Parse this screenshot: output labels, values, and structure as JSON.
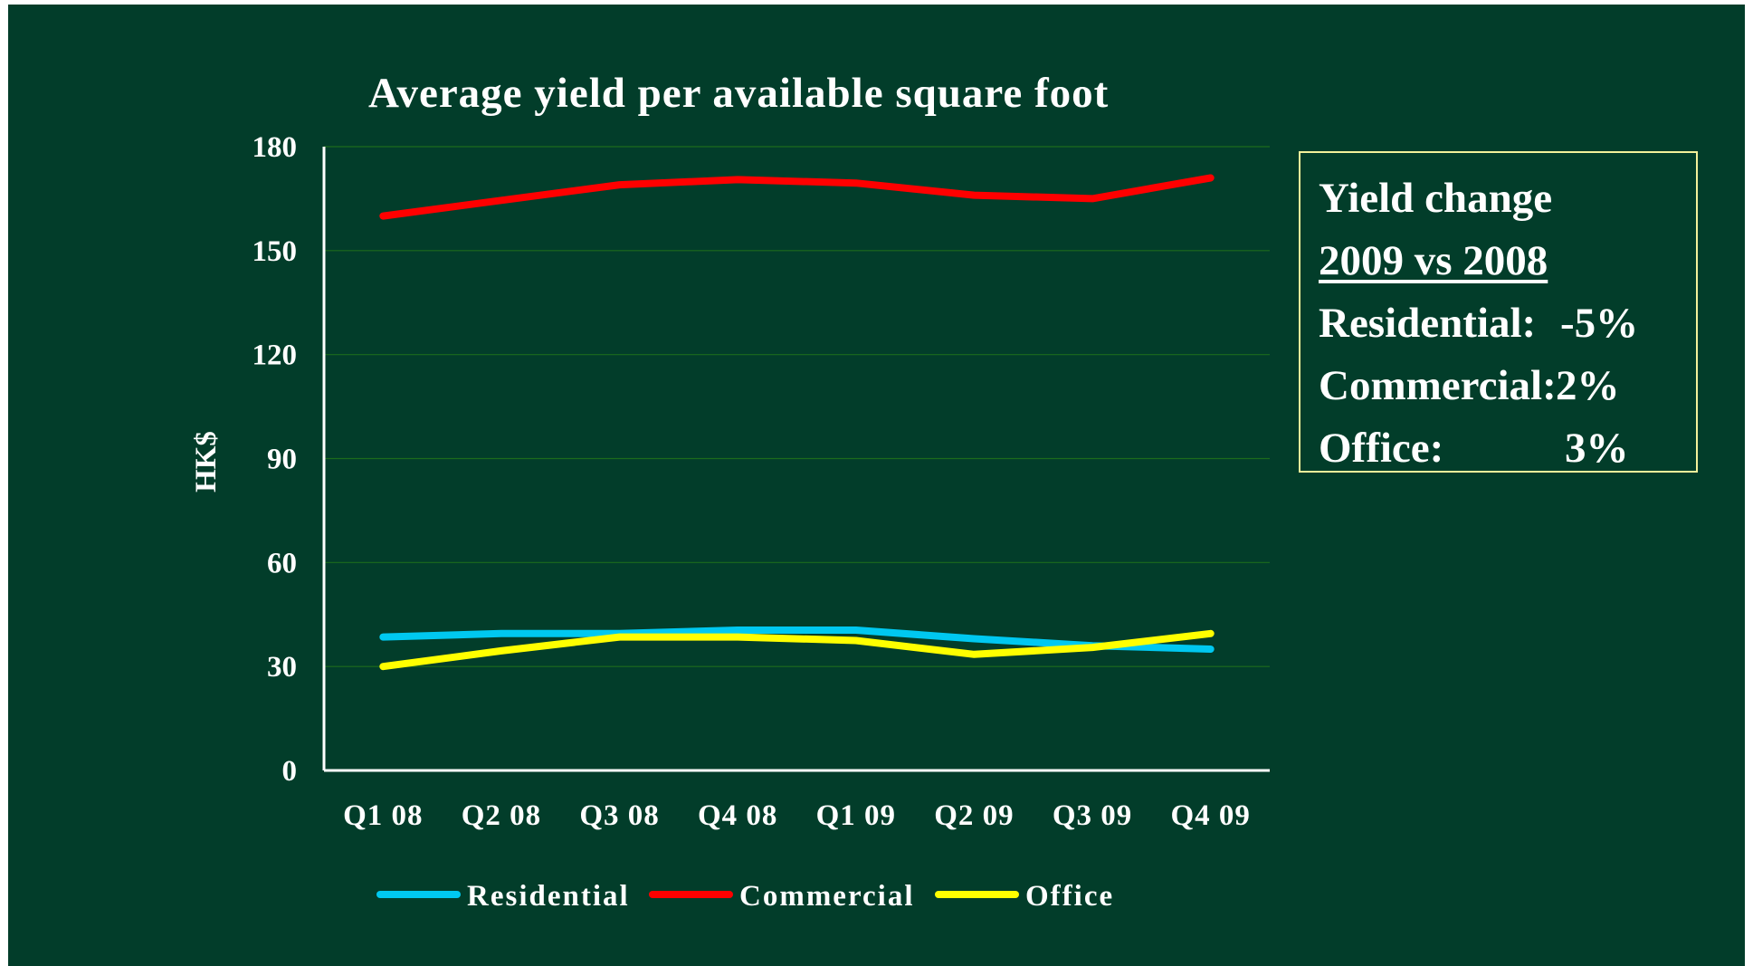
{
  "chart_data": {
    "type": "line",
    "title": "Average yield per available square foot",
    "ylabel": "HK$",
    "xlabel": "",
    "categories": [
      "Q1 08",
      "Q2 08",
      "Q3 08",
      "Q4 08",
      "Q1 09",
      "Q2 09",
      "Q3 09",
      "Q4 09"
    ],
    "ylim": [
      0,
      180
    ],
    "yticks": [
      "0",
      "30",
      "60",
      "90",
      "120",
      "150",
      "180"
    ],
    "grid": true,
    "legend_position": "bottom",
    "series": [
      {
        "name": "Residential",
        "color": "#00c8f0",
        "values": [
          38.5,
          39.5,
          39.5,
          40.5,
          40.5,
          38,
          36,
          35
        ]
      },
      {
        "name": "Commercial",
        "color": "#ff0000",
        "values": [
          160,
          164.5,
          169,
          170.5,
          169.5,
          166,
          165,
          171
        ]
      },
      {
        "name": "Office",
        "color": "#ffff00",
        "values": [
          30,
          34.5,
          38.5,
          38.5,
          37.5,
          33.5,
          35.5,
          39.5
        ]
      }
    ]
  },
  "info_box": {
    "line1": "Yield change",
    "line2": "2009 vs 2008",
    "rows": [
      {
        "label": "Residential:",
        "value": "-5%"
      },
      {
        "label": "Commercial:",
        "value": "2%"
      },
      {
        "label": "Office:",
        "value": "3%"
      }
    ]
  }
}
